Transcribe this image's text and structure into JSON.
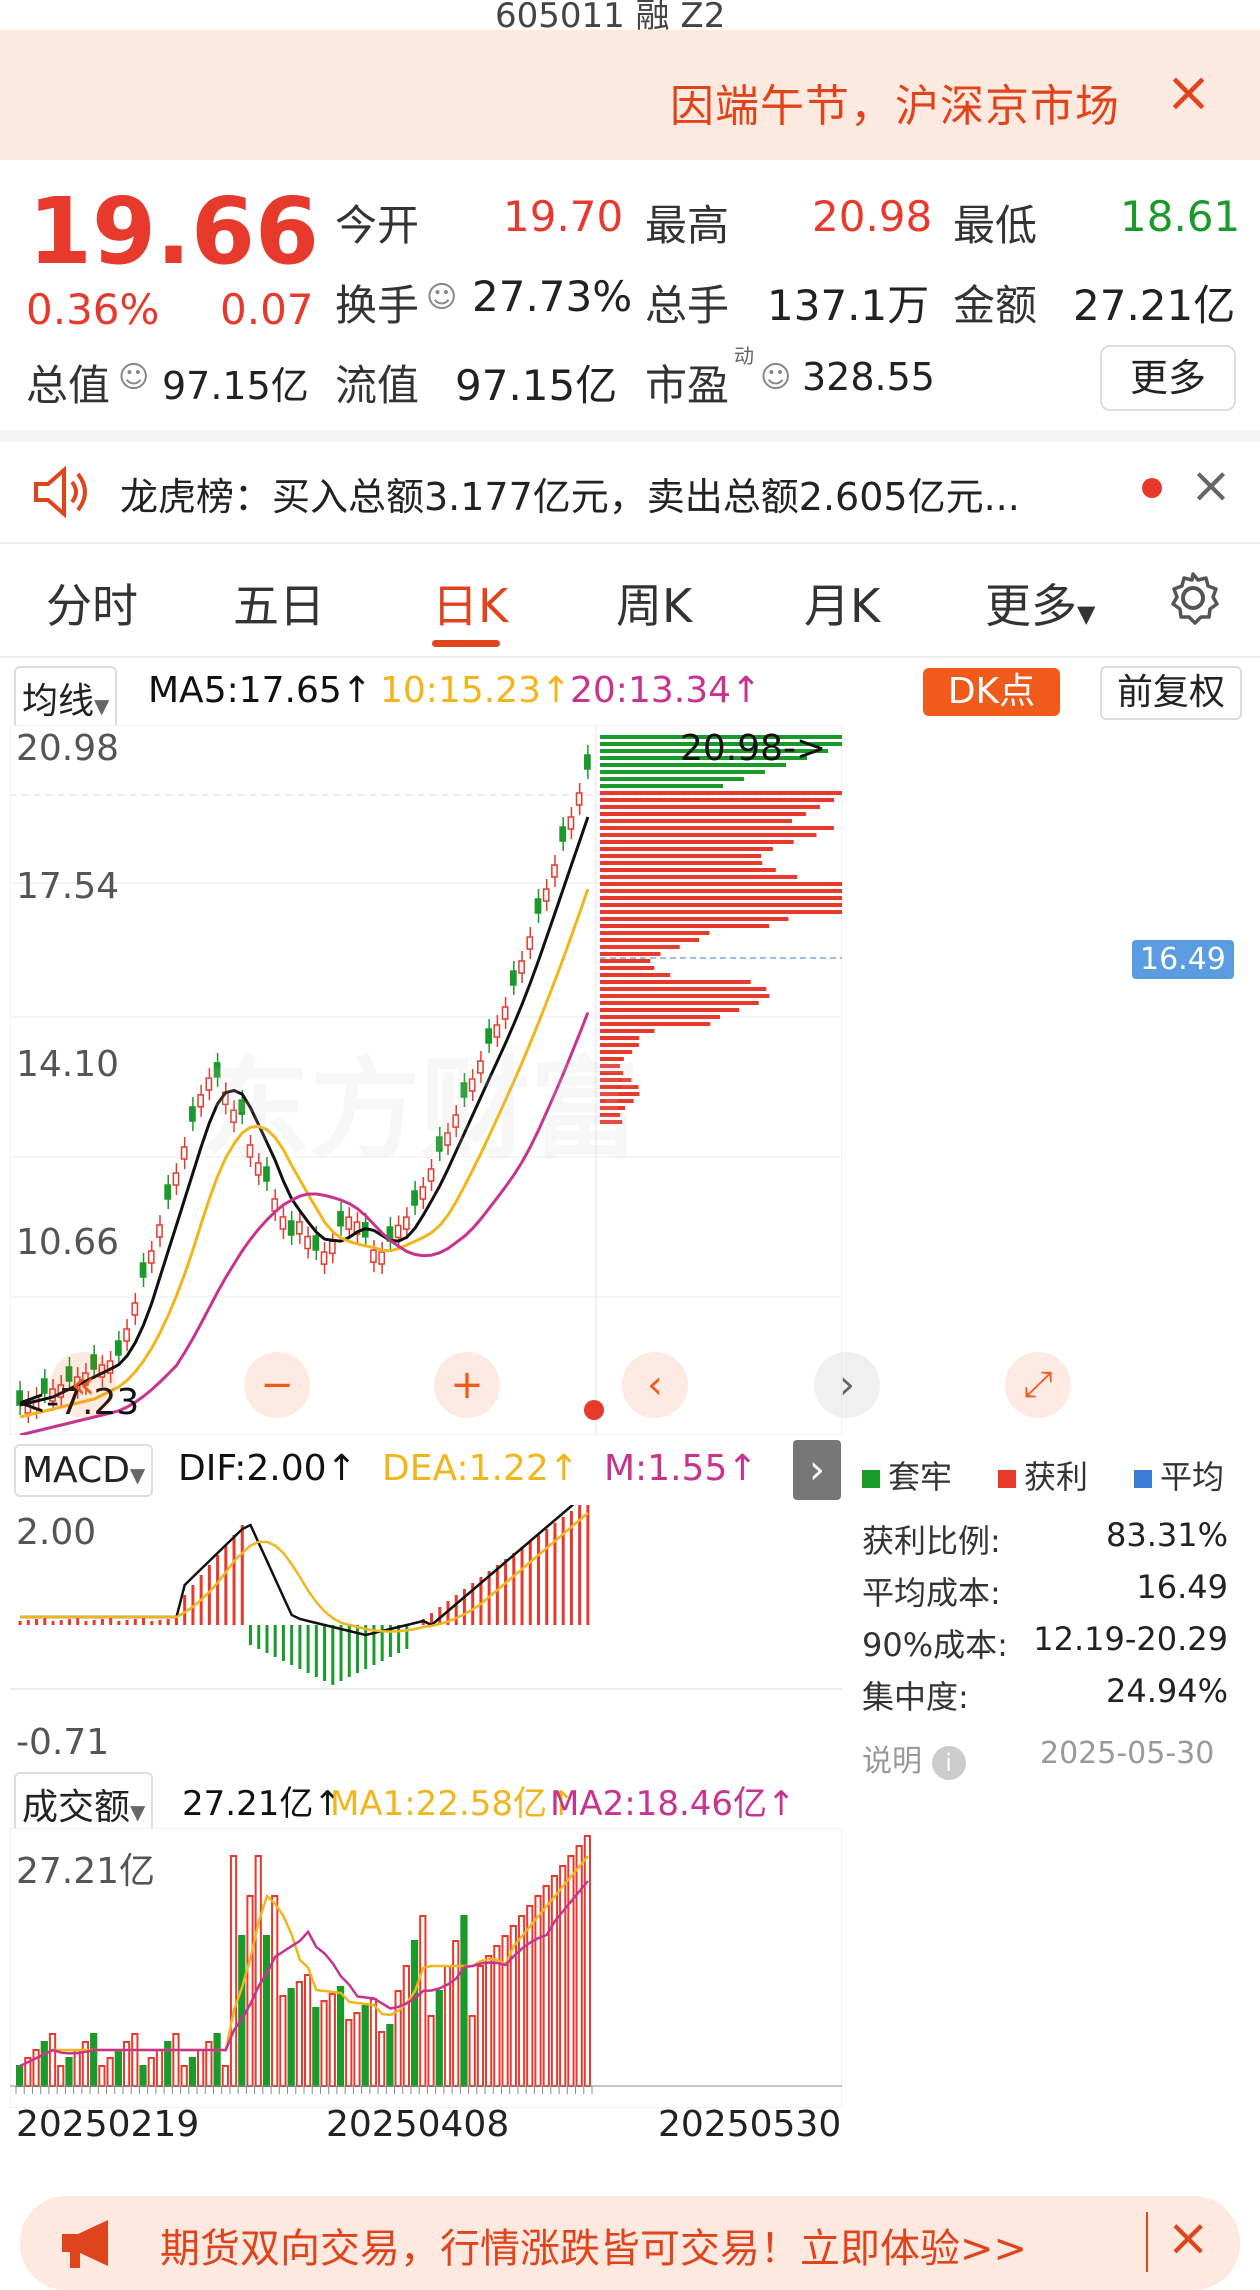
{
  "notice": {
    "text": "因端午节，沪深京市场",
    "close": "×"
  },
  "quote": {
    "price": "19.66",
    "change_pct": "0.36%",
    "change": "0.07",
    "open_label": "今开",
    "open": "19.70",
    "high_label": "最高",
    "high": "20.98",
    "low_label": "最低",
    "low": "18.61",
    "turnover_label": "换手",
    "turnover": "27.73%",
    "volume_label": "总手",
    "volume": "137.1万",
    "amount_label": "金额",
    "amount": "27.21亿",
    "mktcap_label": "总值",
    "mktcap": "97.15亿",
    "float_label": "流值",
    "float_cap": "97.15亿",
    "pe_label": "市盈",
    "pe_sup": "动",
    "pe": "328.55",
    "more": "更多"
  },
  "lhb": {
    "text": "龙虎榜：买入总额3.177亿元，卖出总额2.605亿元..."
  },
  "tabs": [
    "分时",
    "五日",
    "日K",
    "周K",
    "月K",
    "更多"
  ],
  "active_tab": 2,
  "ma_bar": {
    "selector": "均线",
    "ma5": "MA5:17.65↑",
    "ma10": "10:15.23↑",
    "ma20": "20:13.34↑",
    "dk": "DK点",
    "adjust": "前复权"
  },
  "kline_axis": {
    "max": "20.98",
    "l2": "17.54",
    "l3": "14.10",
    "l4": "10.66",
    "high_tag": "20.98->",
    "low_tag": "<-7.23",
    "cost_tag": "16.49"
  },
  "macd": {
    "selector": "MACD",
    "dif": "DIF:2.00↑",
    "dea": "DEA:1.22↑",
    "m": "M:1.55↑",
    "max": "2.00",
    "min": "-0.71"
  },
  "chip": {
    "legend": [
      "套牢",
      "获利",
      "平均"
    ],
    "stats": [
      {
        "label": "获利比例:",
        "value": "83.31%"
      },
      {
        "label": "平均成本:",
        "value": "16.49"
      },
      {
        "label": "90%成本:",
        "value": "12.19-20.29"
      },
      {
        "label": "集中度:",
        "value": "24.94%"
      }
    ],
    "note": "说明",
    "date": "2025-05-30"
  },
  "volume": {
    "selector": "成交额",
    "val": "27.21亿↑",
    "ma1": "MA1:22.58亿↑",
    "ma2": "MA2:18.46亿↑",
    "max": "27.21亿"
  },
  "dates": [
    "20250219",
    "20250408",
    "20250530"
  ],
  "ad": {
    "text": "期货双向交易，行情涨跌皆可交易！立即体验>>"
  },
  "colors": {
    "up": "#e8392d",
    "down": "#1a9a2a",
    "accent": "#f05a1a",
    "ma5": "#111111",
    "ma10": "#f2b51c",
    "ma20": "#c8338f"
  }
}
